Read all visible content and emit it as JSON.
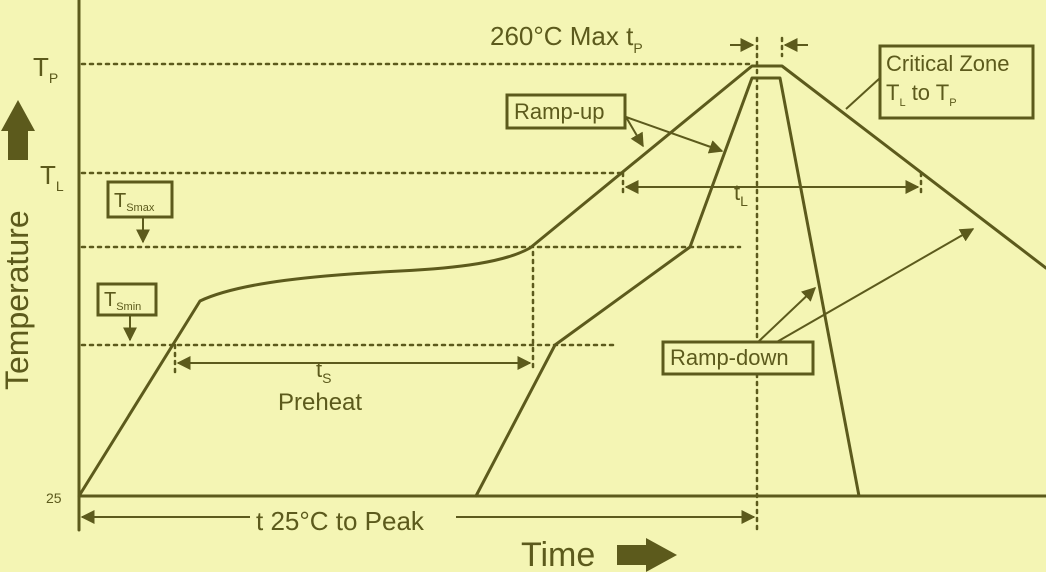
{
  "axes": {
    "y_title": "Temperature",
    "x_title": "Time",
    "tp_main": "T",
    "tp_sub": "P",
    "tl_main": "T",
    "tl_sub": "L",
    "start_temp": "25"
  },
  "labels": {
    "peak_prefix": "260°C Max t",
    "peak_sub": "P",
    "ramp_up": "Ramp-up",
    "ramp_down": "Ramp-down",
    "critical_line1": "Critical Zone",
    "critical_line2_a": "T",
    "critical_line2_a_sub": "L",
    "critical_line2_mid": " to T",
    "critical_line2_b_sub": "P",
    "tsmax_main": "T",
    "tsmax_sub": "Smax",
    "tsmin_main": "T",
    "tsmin_sub": "Smin",
    "ts_main": "t",
    "ts_sub": "S",
    "preheat": "Preheat",
    "tl_time_main": "t",
    "tl_time_sub": "L",
    "t25_to_peak": "t 25°C to Peak"
  },
  "colors": {
    "background": "#f4f5b4",
    "ink": "#5c5a1c"
  }
}
